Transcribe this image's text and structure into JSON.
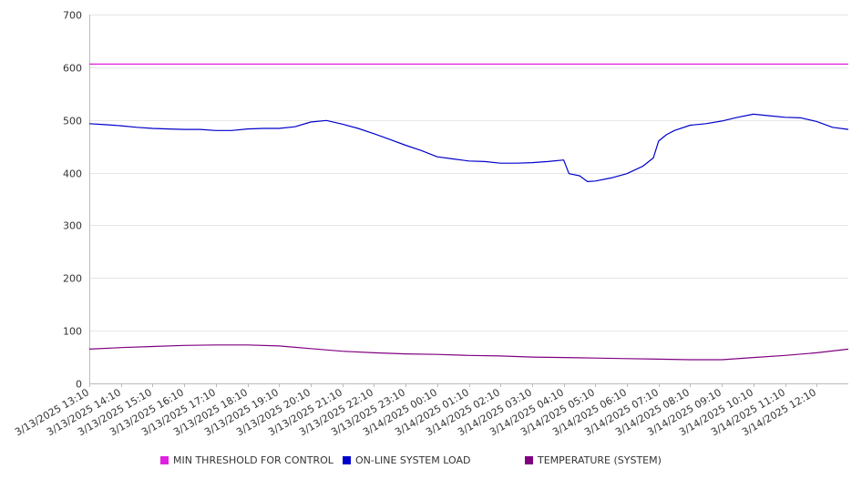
{
  "chart_data": {
    "type": "line",
    "title": "",
    "xlabel": "",
    "ylabel": "",
    "ylim": [
      0,
      700
    ],
    "y_ticks": [
      "0",
      "100",
      "200",
      "300",
      "400",
      "500",
      "600",
      "700"
    ],
    "grid": true,
    "legend_position": "bottom",
    "x_start": "3/13/2025 13:10",
    "x_end": "3/14/2025 13:10",
    "x_tick_labels": [
      "3/13/2025 13:10",
      "3/13/2025 14:10",
      "3/13/2025 15:10",
      "3/13/2025 16:10",
      "3/13/2025 17:10",
      "3/13/2025 18:10",
      "3/13/2025 19:10",
      "3/13/2025 20:10",
      "3/13/2025 21:10",
      "3/13/2025 22:10",
      "3/13/2025 23:10",
      "3/14/2025 00:10",
      "3/14/2025 01:10",
      "3/14/2025 02:10",
      "3/14/2025 03:10",
      "3/14/2025 04:10",
      "3/14/2025 05:10",
      "3/14/2025 06:10",
      "3/14/2025 07:10",
      "3/14/2025 08:10",
      "3/14/2025 09:10",
      "3/14/2025 10:10",
      "3/14/2025 11:10",
      "3/14/2025 12:10"
    ],
    "series": [
      {
        "name": "MIN THRESHOLD FOR CONTROL",
        "color": "#e020e0",
        "points": [
          [
            "3/13/2025 13:10",
            606
          ],
          [
            "3/14/2025 13:10",
            606
          ]
        ]
      },
      {
        "name": "ON-LINE SYSTEM LOAD",
        "color": "#0000cc",
        "points": [
          [
            "3/13/2025 13:10",
            493
          ],
          [
            "3/13/2025 13:40",
            491
          ],
          [
            "3/13/2025 14:10",
            489
          ],
          [
            "3/13/2025 14:40",
            486
          ],
          [
            "3/13/2025 15:10",
            484
          ],
          [
            "3/13/2025 15:40",
            483
          ],
          [
            "3/13/2025 16:10",
            482
          ],
          [
            "3/13/2025 16:40",
            482
          ],
          [
            "3/13/2025 17:10",
            480
          ],
          [
            "3/13/2025 17:40",
            480
          ],
          [
            "3/13/2025 18:10",
            483
          ],
          [
            "3/13/2025 18:40",
            484
          ],
          [
            "3/13/2025 19:10",
            484
          ],
          [
            "3/13/2025 19:40",
            487
          ],
          [
            "3/13/2025 20:10",
            496
          ],
          [
            "3/13/2025 20:40",
            499
          ],
          [
            "3/13/2025 21:10",
            492
          ],
          [
            "3/13/2025 21:40",
            484
          ],
          [
            "3/13/2025 22:10",
            474
          ],
          [
            "3/13/2025 22:40",
            463
          ],
          [
            "3/13/2025 23:10",
            452
          ],
          [
            "3/13/2025 23:40",
            442
          ],
          [
            "3/14/2025 00:10",
            430
          ],
          [
            "3/14/2025 00:40",
            426
          ],
          [
            "3/14/2025 01:10",
            422
          ],
          [
            "3/14/2025 01:40",
            421
          ],
          [
            "3/14/2025 02:10",
            418
          ],
          [
            "3/14/2025 02:40",
            418
          ],
          [
            "3/14/2025 03:10",
            419
          ],
          [
            "3/14/2025 03:40",
            421
          ],
          [
            "3/14/2025 04:10",
            424
          ],
          [
            "3/14/2025 04:20",
            398
          ],
          [
            "3/14/2025 04:40",
            394
          ],
          [
            "3/14/2025 04:55",
            383
          ],
          [
            "3/14/2025 05:10",
            384
          ],
          [
            "3/14/2025 05:40",
            390
          ],
          [
            "3/14/2025 06:10",
            398
          ],
          [
            "3/14/2025 06:40",
            412
          ],
          [
            "3/14/2025 07:00",
            428
          ],
          [
            "3/14/2025 07:10",
            460
          ],
          [
            "3/14/2025 07:25",
            472
          ],
          [
            "3/14/2025 07:40",
            480
          ],
          [
            "3/14/2025 08:10",
            490
          ],
          [
            "3/14/2025 08:40",
            493
          ],
          [
            "3/14/2025 09:10",
            498
          ],
          [
            "3/14/2025 09:40",
            505
          ],
          [
            "3/14/2025 10:10",
            511
          ],
          [
            "3/14/2025 10:40",
            508
          ],
          [
            "3/14/2025 11:10",
            505
          ],
          [
            "3/14/2025 11:40",
            504
          ],
          [
            "3/14/2025 12:10",
            497
          ],
          [
            "3/14/2025 12:40",
            486
          ],
          [
            "3/14/2025 13:10",
            482
          ]
        ]
      },
      {
        "name": "TEMPERATURE (SYSTEM)",
        "color": "#800080",
        "points": [
          [
            "3/13/2025 13:10",
            65
          ],
          [
            "3/13/2025 14:10",
            68
          ],
          [
            "3/13/2025 15:10",
            70
          ],
          [
            "3/13/2025 16:10",
            72
          ],
          [
            "3/13/2025 17:10",
            73
          ],
          [
            "3/13/2025 18:10",
            73
          ],
          [
            "3/13/2025 19:10",
            71
          ],
          [
            "3/13/2025 20:10",
            66
          ],
          [
            "3/13/2025 21:10",
            61
          ],
          [
            "3/13/2025 22:10",
            58
          ],
          [
            "3/13/2025 23:10",
            56
          ],
          [
            "3/14/2025 00:10",
            55
          ],
          [
            "3/14/2025 01:10",
            53
          ],
          [
            "3/14/2025 02:10",
            52
          ],
          [
            "3/14/2025 03:10",
            50
          ],
          [
            "3/14/2025 04:10",
            49
          ],
          [
            "3/14/2025 05:10",
            48
          ],
          [
            "3/14/2025 06:10",
            47
          ],
          [
            "3/14/2025 07:10",
            46
          ],
          [
            "3/14/2025 08:10",
            45
          ],
          [
            "3/14/2025 09:10",
            45
          ],
          [
            "3/14/2025 10:10",
            49
          ],
          [
            "3/14/2025 11:10",
            53
          ],
          [
            "3/14/2025 12:10",
            58
          ],
          [
            "3/14/2025 13:10",
            65
          ]
        ]
      }
    ]
  }
}
